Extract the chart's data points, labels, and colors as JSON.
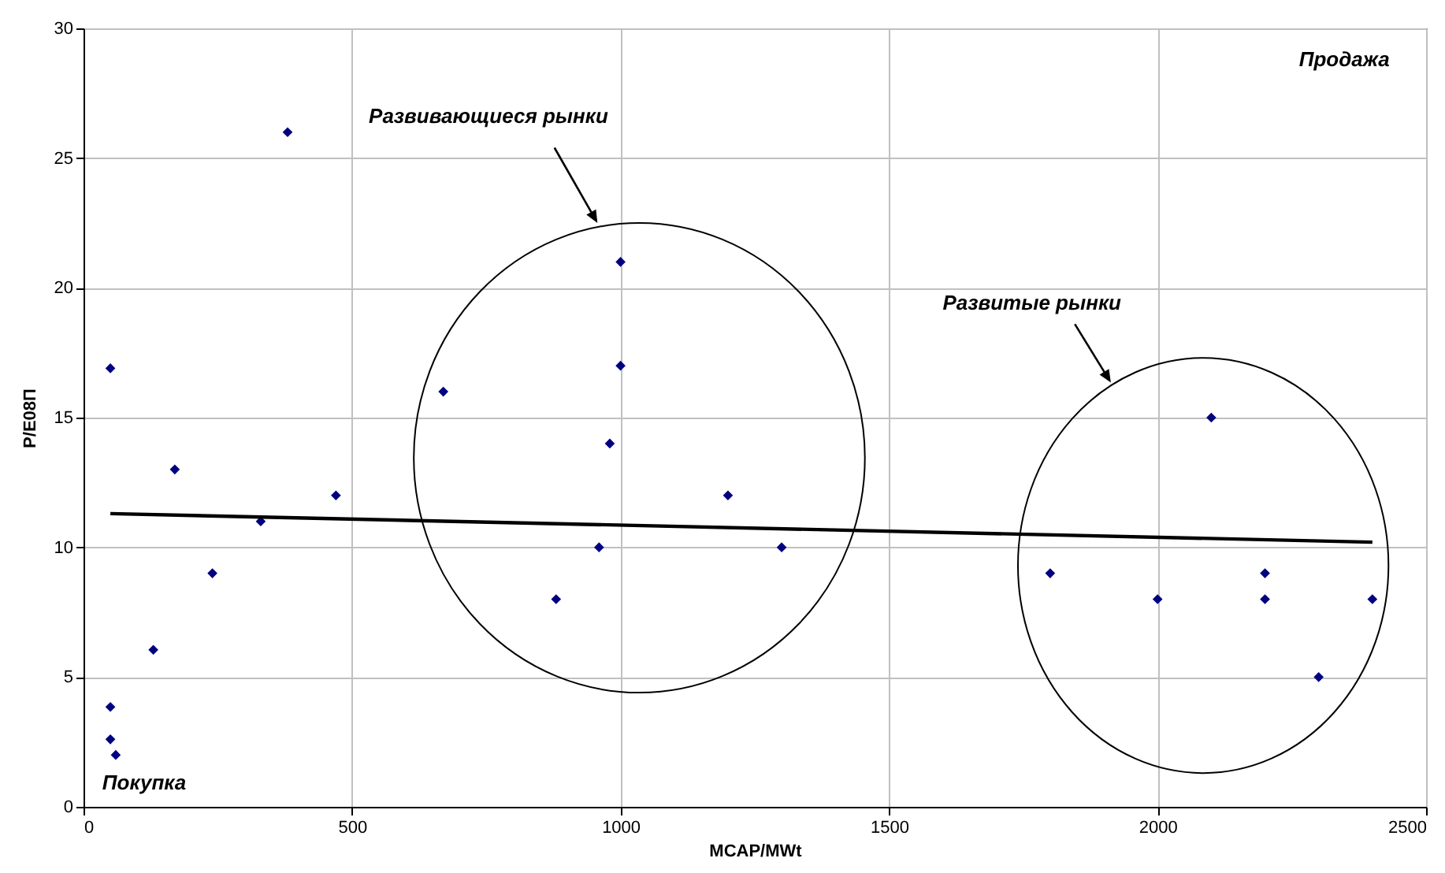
{
  "chart_data": {
    "type": "scatter",
    "xlabel": "MCAP/MWt",
    "ylabel": "P/E08П",
    "xlim": [
      0,
      2500
    ],
    "xticks": [
      0,
      500,
      1000,
      1500,
      2000,
      2500
    ],
    "ylim": [
      0,
      30
    ],
    "yticks": [
      0,
      5,
      10,
      15,
      20,
      25,
      30
    ],
    "grid": true,
    "series": [
      {
        "color": "#000080",
        "marker": "diamond",
        "x": [
          50,
          50,
          50,
          60,
          130,
          170,
          240,
          330,
          470,
          380,
          670,
          880,
          960,
          980,
          1000,
          1000,
          1200,
          1300,
          1800,
          2000,
          2100,
          2200,
          2200,
          2300,
          2400
        ],
        "values": [
          16.9,
          3.85,
          2.6,
          2.0,
          6.05,
          13,
          9,
          11,
          12,
          26,
          16,
          8,
          10,
          14,
          21,
          17,
          12,
          10,
          9,
          8,
          15,
          9,
          8,
          5,
          8
        ]
      },
      {
        "type": "line",
        "color": "#000000",
        "marker": "none",
        "x": [
          50,
          2400
        ],
        "values": [
          11.3,
          10.2
        ]
      }
    ],
    "annotations": [
      "Развивающиеся рынки",
      "Развитые рынки",
      "Продажа",
      "Покупка"
    ]
  }
}
